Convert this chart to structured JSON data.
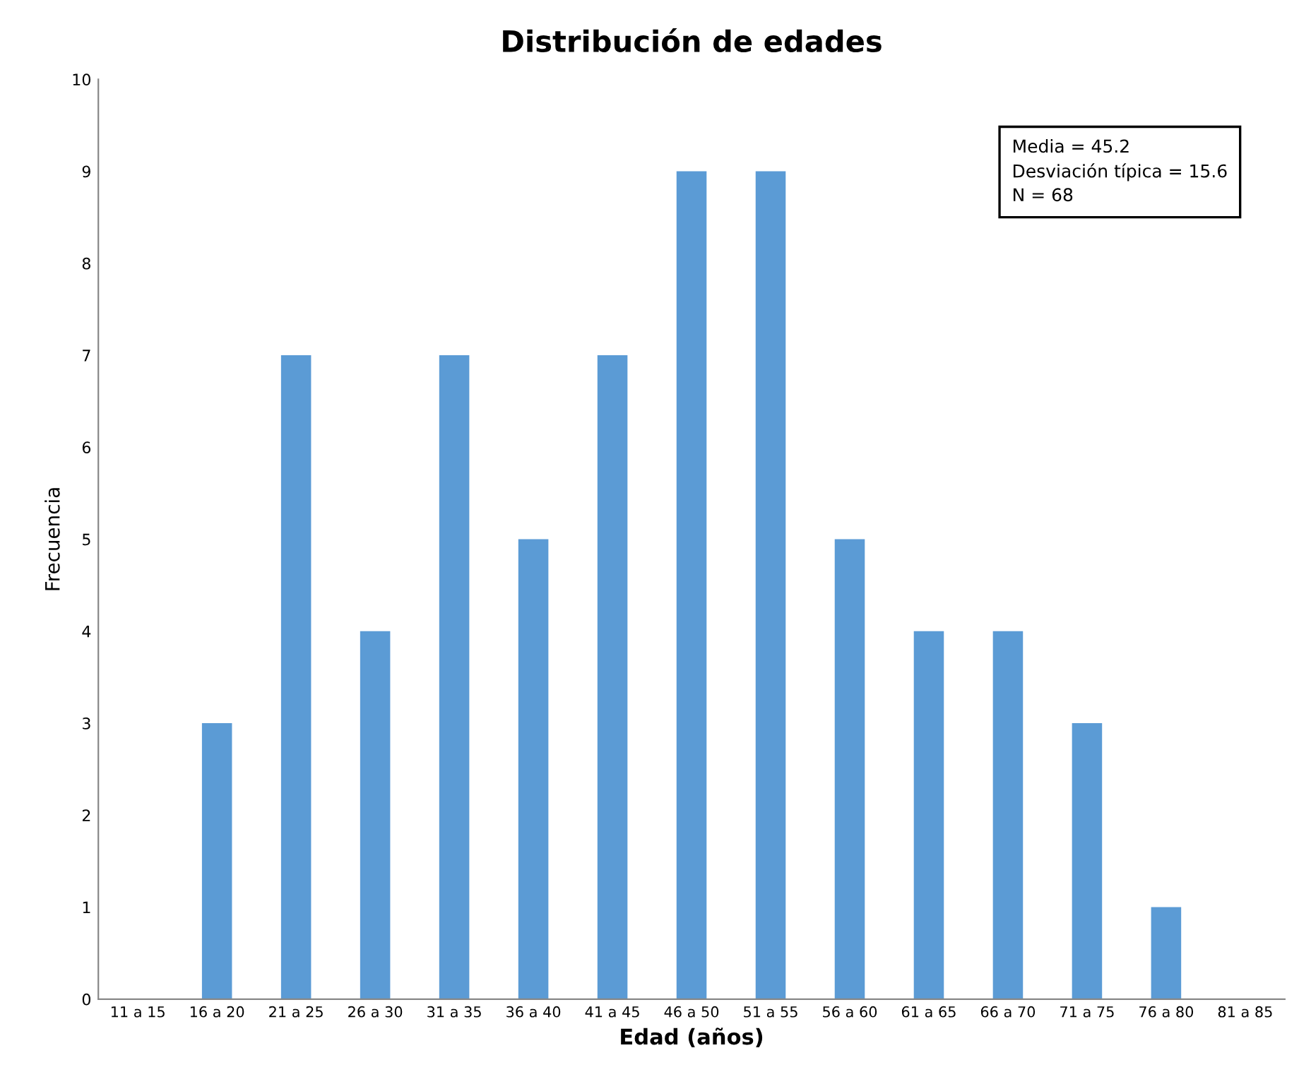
{
  "chart_data": {
    "type": "bar",
    "title": "Distribución de edades",
    "xlabel": "Edad (años)",
    "ylabel": "Frecuencia",
    "categories": [
      "11 a 15",
      "16 a 20",
      "21 a 25",
      "26 a 30",
      "31 a 35",
      "36 a 40",
      "41 a 45",
      "46 a 50",
      "51 a 55",
      "56 a 60",
      "61 a 65",
      "66 a 70",
      "71 a 75",
      "76 a 80",
      "81 a 85"
    ],
    "values": [
      0,
      3,
      7,
      4,
      7,
      5,
      7,
      9,
      9,
      5,
      4,
      4,
      3,
      1,
      0
    ],
    "color": "#5b9bd5",
    "ylim": [
      0,
      10
    ],
    "yticks": [
      0,
      1,
      2,
      3,
      4,
      5,
      6,
      7,
      8,
      9,
      10
    ],
    "grid": false,
    "annotations": [
      "Media = 45.2\nDesviación típica = 15.6\nN = 68"
    ]
  }
}
